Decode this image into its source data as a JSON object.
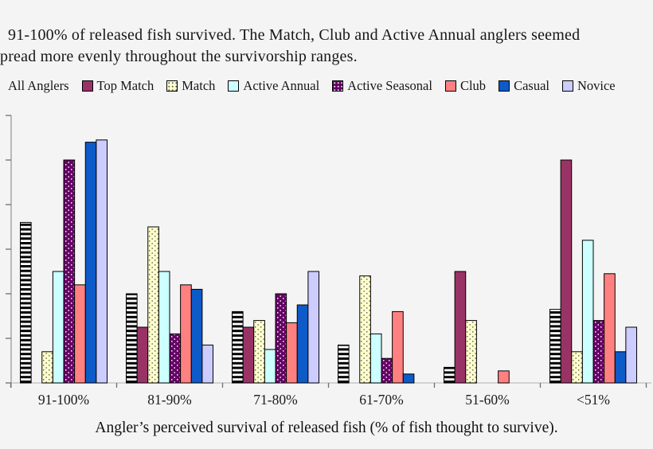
{
  "heading": {
    "line1": "91-100% of released fish survived. The Match, Club and Active Annual anglers seemed",
    "line2": "pread more evenly throughout the survivorship ranges."
  },
  "legend": {
    "items": [
      {
        "label": "All Anglers",
        "swatch": "none",
        "color": ""
      },
      {
        "label": "Top Match",
        "swatch": "solid",
        "color": "#993366"
      },
      {
        "label": "Match",
        "swatch": "dots-light",
        "color": "#FFFFCC"
      },
      {
        "label": "Active Annual",
        "swatch": "solid",
        "color": "#CCFFFF"
      },
      {
        "label": "Active Seasonal",
        "swatch": "dots-dark",
        "color": "#660066"
      },
      {
        "label": "Club",
        "swatch": "solid",
        "color": "#FF8080"
      },
      {
        "label": "Casual",
        "swatch": "solid",
        "color": "#0C5BC8"
      },
      {
        "label": "Novice",
        "swatch": "solid",
        "color": "#CCCCFF"
      }
    ]
  },
  "chart_data": {
    "type": "bar",
    "categories": [
      "91-100%",
      "81-90%",
      "71-80%",
      "61-70%",
      "51-60%",
      "<51%"
    ],
    "series": [
      {
        "name": "All Anglers",
        "pattern": "pat-stripes",
        "color": "#000000",
        "values": [
          36,
          20,
          16,
          8.5,
          3.5,
          16.5
        ]
      },
      {
        "name": "Top Match",
        "pattern": null,
        "color": "#993366",
        "values": [
          0,
          12.5,
          12.5,
          0,
          25,
          50
        ]
      },
      {
        "name": "Match",
        "pattern": "pat-dots-light",
        "color": "#FFFFCC",
        "values": [
          7,
          35,
          14,
          24,
          14,
          7
        ]
      },
      {
        "name": "Active Annual",
        "pattern": null,
        "color": "#CCFFFF",
        "values": [
          25,
          25,
          7.5,
          11,
          0,
          32
        ]
      },
      {
        "name": "Active Seasonal",
        "pattern": "pat-dots-dark",
        "color": "#660066",
        "values": [
          50,
          11,
          20,
          5.5,
          0,
          14
        ]
      },
      {
        "name": "Club",
        "pattern": null,
        "color": "#FF8080",
        "values": [
          22,
          22,
          13.5,
          16,
          2.7,
          24.5
        ]
      },
      {
        "name": "Casual",
        "pattern": null,
        "color": "#0C5BC8",
        "values": [
          54,
          21,
          17.5,
          2,
          0,
          7
        ]
      },
      {
        "name": "Novice",
        "pattern": null,
        "color": "#CCCCFF",
        "values": [
          54.5,
          8.5,
          25,
          0,
          0,
          12.5
        ]
      }
    ],
    "title": "",
    "xlabel": "Angler’s perceived survival of released fish (% of fish thought to survive).",
    "ylabel": "",
    "ylim": [
      0,
      60
    ],
    "ytick_interval": 10,
    "yticklabels_visible": false,
    "grid": false,
    "legend_position": "top"
  }
}
